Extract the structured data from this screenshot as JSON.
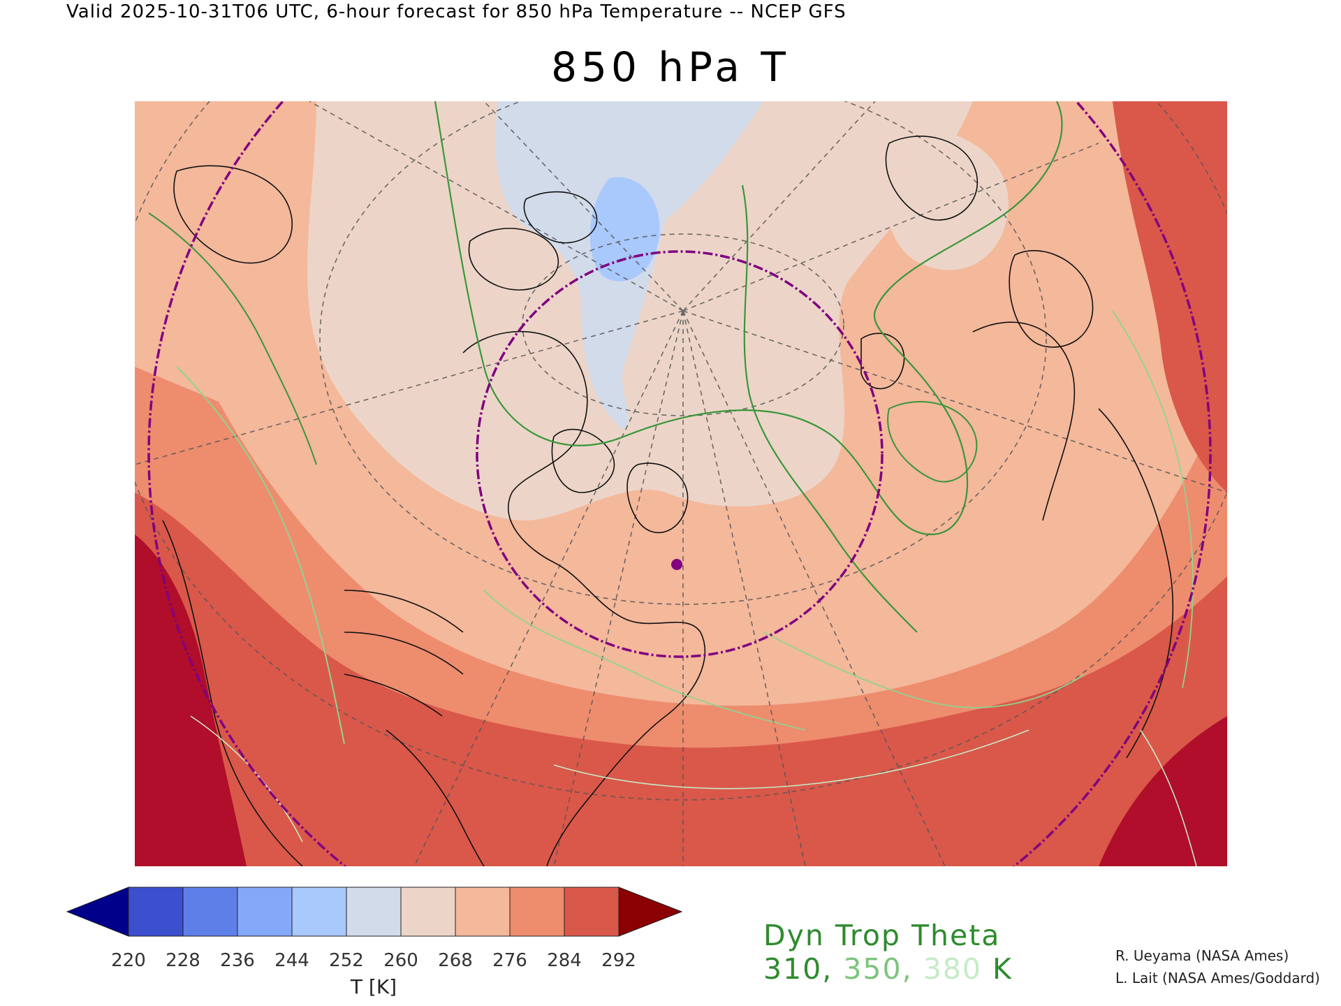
{
  "header": {
    "valid_line": "Valid 2025-10-31T06 UTC, 6-hour forecast for 850 hPa Temperature -- NCEP GFS"
  },
  "title": "850 hPa T",
  "colorbar": {
    "ticks": [
      "220",
      "228",
      "236",
      "244",
      "252",
      "260",
      "268",
      "276",
      "284",
      "292"
    ],
    "colors": [
      "#3c4fce",
      "#5f7fe8",
      "#85a8f8",
      "#a9c8fc",
      "#d2dbea",
      "#ecd5c8",
      "#f4b89b",
      "#ee8c6e",
      "#d9584a"
    ],
    "under_color": "#00008b",
    "over_color": "#8b0000",
    "unit_label": "T [K]"
  },
  "legend": {
    "title": "Dyn Trop Theta",
    "values": [
      "310,",
      "350,",
      "380"
    ],
    "unit": "K",
    "value_colors": [
      "#2e8b2e",
      "#7cc47c",
      "#c6ebc6"
    ]
  },
  "credits": {
    "line1": "R. Ueyama (NASA Ames)",
    "line2": "L. Lait (NASA Ames/Goddard)"
  },
  "map_colors": {
    "cold_pale": "#d2dbea",
    "cold": "#a9c8fc",
    "mild": "#ecd5c8",
    "warmish": "#f4b89b",
    "warm": "#ee8c6e",
    "hot": "#d9584a",
    "hottest": "#b00e2a",
    "coast": "#000000",
    "grid": "#555555",
    "ring": "#800080",
    "contour_dark": "#3a963a",
    "contour_light": "#8fd48f"
  }
}
